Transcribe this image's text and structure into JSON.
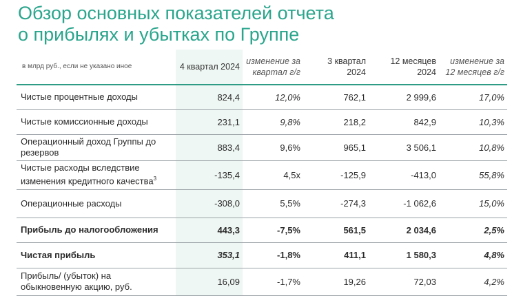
{
  "title": {
    "line1": "Обзор основных показателей отчета",
    "line2": "о прибылях и убытках по Группе"
  },
  "table": {
    "unit_note": "в млрд руб., если не указано иное",
    "headers": [
      "4 квартал 2024",
      "изменение за квартал г/г",
      "3 квартал 2024",
      "12 месяцев 2024",
      "изменение за 12 месяцев г/г"
    ],
    "rows": [
      {
        "label": "Чистые процентные доходы",
        "sup": "",
        "values": [
          "824,4",
          "12,0%",
          "762,1",
          "2 999,6",
          "17,0%"
        ]
      },
      {
        "label": "Чистые комиссионные доходы",
        "sup": "",
        "values": [
          "231,1",
          "9,8%",
          "218,2",
          "842,9",
          "10,3%"
        ]
      },
      {
        "label": "Операционный доход Группы до резервов",
        "sup": "",
        "values": [
          "883,4",
          "9,6%",
          "965,1",
          "3 506,1",
          "10,8%"
        ]
      },
      {
        "label": "Чистые расходы вследствие изменения кредитного качества",
        "sup": "3",
        "values": [
          "-135,4",
          "4,5x",
          "-125,9",
          "-413,0",
          "55,8%"
        ]
      },
      {
        "label": "Операционные расходы",
        "sup": "",
        "values": [
          "-308,0",
          "5,5%",
          "-274,3",
          "-1 062,6",
          "15,0%"
        ]
      },
      {
        "label": "Прибыль до налогообложения",
        "sup": "",
        "values": [
          "443,3",
          "-7,5%",
          "561,5",
          "2 034,6",
          "2,5%"
        ]
      },
      {
        "label": "Чистая прибыль",
        "sup": "",
        "values": [
          "353,1",
          "-1,8%",
          "411,1",
          "1 580,3",
          "4,8%"
        ]
      },
      {
        "label": "Прибыль/ (убыток) на обыкновенную акцию, руб.",
        "sup": "",
        "values": [
          "16,09",
          "-1,7%",
          "19,26",
          "72,03",
          "4,2%"
        ]
      }
    ]
  },
  "colors": {
    "accent": "#2aa58c",
    "highlight_column": "#eef7f3"
  }
}
